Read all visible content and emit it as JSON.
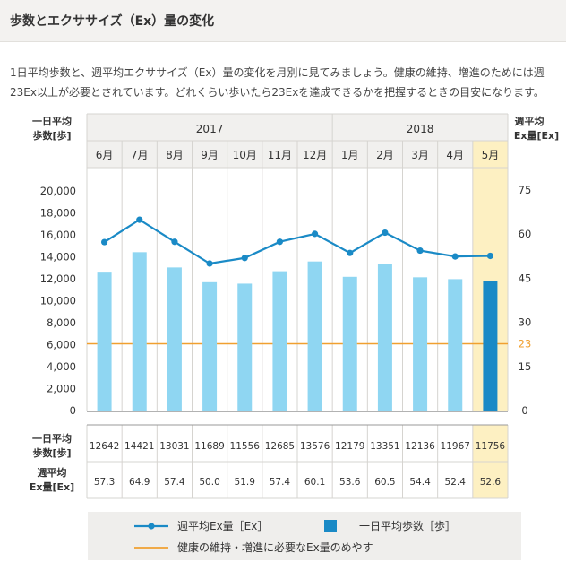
{
  "page": {
    "title": "歩数とエクササイズ（Ex）量の変化",
    "description": "1日平均歩数と、週平均エクササイズ（Ex）量の変化を月別に見てみましょう。健康の維持、増進のためには週23Ex以上が必要とされています。どれくらい歩いたら23Exを達成できるかを把握するときの目安になります。"
  },
  "colors": {
    "line": "#1a8ac6",
    "bar": "#8fd6f2",
    "bar_highlight": "#1a8ac6",
    "target_line": "#f0a030",
    "highlight_bg": "#fdf0c2"
  },
  "chart_data": {
    "type": "bar",
    "years": [
      {
        "label": "2017",
        "months": 7
      },
      {
        "label": "2018",
        "months": 5
      }
    ],
    "categories": [
      "6月",
      "7月",
      "8月",
      "9月",
      "10月",
      "11月",
      "12月",
      "1月",
      "2月",
      "3月",
      "4月",
      "5月"
    ],
    "highlight_index": 11,
    "left_axis": {
      "label_line1": "一日平均",
      "label_line2": "歩数[歩]",
      "ylim": [
        0,
        20000
      ],
      "ticks": [
        "20,000",
        "18,000",
        "16,000",
        "14,000",
        "12,000",
        "10,000",
        "8,000",
        "6,000",
        "4,000",
        "2,000",
        "0"
      ]
    },
    "right_axis": {
      "label_line1": "週平均",
      "label_line2": "Ex量[Ex]",
      "ylim": [
        0,
        80
      ],
      "ticks": [
        {
          "v": 75,
          "t": "75"
        },
        {
          "v": 60,
          "t": "60"
        },
        {
          "v": 45,
          "t": "45"
        },
        {
          "v": 30,
          "t": "30"
        },
        {
          "v": 15,
          "t": "15"
        },
        {
          "v": 0,
          "t": "0"
        }
      ]
    },
    "target": {
      "value": 23,
      "label": "23"
    },
    "series": [
      {
        "name": "一日平均歩数［歩］",
        "kind": "bar",
        "axis": "left",
        "values": [
          12642,
          14421,
          13031,
          11689,
          11556,
          12685,
          13576,
          12179,
          13351,
          12136,
          11967,
          11756
        ]
      },
      {
        "name": "週平均Ex量［Ex］",
        "kind": "line",
        "axis": "right",
        "values": [
          57.3,
          64.9,
          57.4,
          50.0,
          51.9,
          57.4,
          60.1,
          53.6,
          60.5,
          54.4,
          52.4,
          52.6
        ]
      }
    ],
    "table": {
      "row1_label_line1": "一日平均",
      "row1_label_line2": "歩数[歩]",
      "row1": [
        "12642",
        "14421",
        "13031",
        "11689",
        "11556",
        "12685",
        "13576",
        "12179",
        "13351",
        "12136",
        "11967",
        "11756"
      ],
      "row2_label_line1": "週平均",
      "row2_label_line2": "Ex量[Ex]",
      "row2": [
        "57.3",
        "64.9",
        "57.4",
        "50.0",
        "51.9",
        "57.4",
        "60.1",
        "53.6",
        "60.5",
        "54.4",
        "52.4",
        "52.6"
      ]
    },
    "legend": {
      "line_label": "週平均Ex量［Ex］",
      "bar_label": "一日平均歩数［歩］",
      "target_label": "健康の維持・増進に必要なEx量のめやす"
    }
  }
}
